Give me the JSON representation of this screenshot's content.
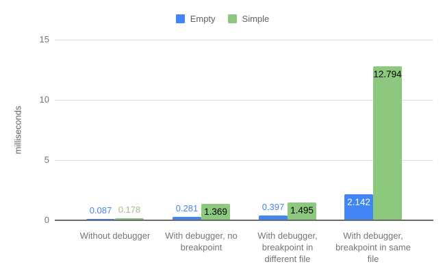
{
  "chart_data": {
    "type": "bar",
    "title": "",
    "xlabel": "",
    "ylabel": "milliseconds",
    "ylim": [
      0,
      15
    ],
    "yticks": [
      0,
      5,
      10,
      15
    ],
    "grid": true,
    "legend_position": "top",
    "categories": [
      "Without debugger",
      "With debugger, no breakpoint",
      "With debugger, breakpoint in different file",
      "With debugger, breakpoint in same file"
    ],
    "category_label_lines": [
      [
        "Without debugger"
      ],
      [
        "With debugger, no",
        "breakpoint"
      ],
      [
        "With debugger,",
        "breakpoint in",
        "different file"
      ],
      [
        "With debugger,",
        "breakpoint in same",
        "file"
      ]
    ],
    "series": [
      {
        "name": "Empty",
        "color": "#4285f4",
        "values": [
          0.087,
          0.281,
          0.397,
          2.142
        ],
        "value_labels": [
          "0.087",
          "0.281",
          "0.397",
          "2.142"
        ],
        "outside_label_color": "#4285f4",
        "inside_label_color": "#ffffff"
      },
      {
        "name": "Simple",
        "color": "#8cc87d",
        "values": [
          0.178,
          1.369,
          1.495,
          12.794
        ],
        "value_labels": [
          "0.178",
          "1.369",
          "1.495",
          "12.794"
        ],
        "outside_label_color": "#9dbe8f",
        "inside_label_color": "#000000"
      }
    ],
    "colors": {
      "background": "#ffffff",
      "grid": "#e0e0e0",
      "axis_line": "#6b6b6b",
      "tick_label": "#757575",
      "category_label": "#757575",
      "legend_text": "#616161"
    }
  }
}
